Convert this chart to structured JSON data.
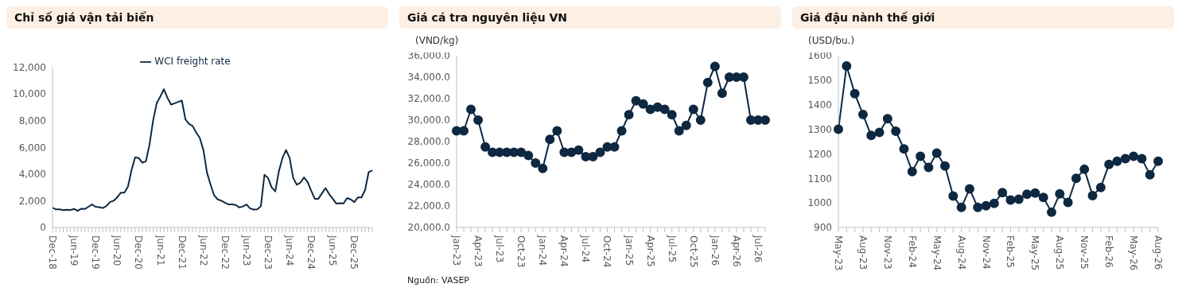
{
  "chart_data": [
    {
      "type": "line",
      "title": "Chỉ số giá vận tải biển",
      "legend": "top",
      "marker": "none",
      "categories": [
        "Dec-18",
        null,
        null,
        null,
        null,
        null,
        "Jun-19",
        null,
        null,
        null,
        null,
        null,
        "Dec-19",
        null,
        null,
        null,
        null,
        null,
        "Jun-20",
        null,
        null,
        null,
        null,
        null,
        "Dec-20",
        null,
        null,
        null,
        null,
        null,
        "Jun-21",
        null,
        null,
        null,
        null,
        null,
        "Dec-21",
        null,
        null,
        null,
        null,
        null,
        "Jun-22",
        null,
        null,
        null,
        null,
        null,
        "Dec-22",
        null,
        null,
        null,
        null,
        null,
        "Jun-23",
        null,
        null,
        null,
        null,
        null,
        "Dec-23",
        null,
        null,
        null,
        null,
        null,
        "Jun-24",
        null,
        null,
        null,
        null,
        null,
        "Dec-24",
        null,
        null,
        null,
        null,
        null,
        "Jun-25",
        null,
        null,
        null,
        null,
        null,
        "Dec-25",
        null,
        null,
        null,
        null,
        null
      ],
      "ylim": [
        0,
        12000
      ],
      "yticks": [
        0,
        {
          "value": 2000,
          "label": "2,000"
        },
        {
          "value": 4000,
          "label": "4,000"
        },
        {
          "value": 6000,
          "label": "6,000"
        },
        {
          "value": 8000,
          "label": "8,000"
        },
        {
          "value": 10000,
          "label": "10,000"
        },
        {
          "value": 12000,
          "label": "12,000"
        }
      ],
      "series": [
        {
          "name": "WCI freight rate",
          "color": "#0e2841",
          "values": [
            1480,
            1350,
            1350,
            1300,
            1330,
            1310,
            1380,
            1250,
            1400,
            1380,
            1550,
            1720,
            1550,
            1520,
            1450,
            1600,
            1900,
            2000,
            2250,
            2600,
            2600,
            3050,
            4300,
            5250,
            5200,
            4850,
            4950,
            6200,
            8000,
            9300,
            9800,
            10350,
            9700,
            9200,
            9300,
            9400,
            9500,
            8100,
            7750,
            7600,
            7100,
            6700,
            5800,
            4100,
            3200,
            2400,
            2100,
            2000,
            1850,
            1720,
            1730,
            1680,
            1500,
            1570,
            1720,
            1420,
            1340,
            1360,
            1600,
            3950,
            3700,
            3000,
            2700,
            4200,
            5200,
            5800,
            5200,
            3700,
            3200,
            3350,
            3750,
            3400,
            2750,
            2150,
            2150,
            2550,
            2950,
            2500,
            2150,
            1780,
            1820,
            1800,
            2200,
            2100,
            1900,
            2250,
            2250,
            2800,
            4150,
            4270
          ]
        }
      ]
    },
    {
      "type": "line",
      "title": "Giá cá tra nguyên liệu VN",
      "ylabel": "(VND/kg)",
      "legend": false,
      "marker": "circle",
      "categories": [
        "Jan-23",
        null,
        null,
        "Apr-23",
        null,
        null,
        "Jul-23",
        null,
        null,
        "Oct-23",
        null,
        null,
        "Jan-24",
        null,
        null,
        "Apr-24",
        null,
        null,
        "Jul-24",
        null,
        null,
        "Oct-24",
        null,
        null,
        "Jan-25",
        null,
        null,
        "Apr-25",
        null,
        null,
        "Jul-25",
        null,
        null,
        "Oct-25",
        null,
        null,
        "Jan-26",
        null,
        null,
        "Apr-26",
        null,
        null,
        "Jul-26",
        null
      ],
      "ylim": [
        20000,
        36000
      ],
      "yticks": [
        {
          "value": 20000,
          "label": "20,000.0"
        },
        {
          "value": 22000,
          "label": "22,000.0"
        },
        {
          "value": 24000,
          "label": "24,000.0"
        },
        {
          "value": 26000,
          "label": "26,000.0"
        },
        {
          "value": 28000,
          "label": "28,000.0"
        },
        {
          "value": 30000,
          "label": "30,000.0"
        },
        {
          "value": 32000,
          "label": "32,000.0"
        },
        {
          "value": 34000,
          "label": "34,000.0"
        },
        {
          "value": 36000,
          "label": "36,000.0"
        }
      ],
      "annotations": [
        "Nguồn: VASEP"
      ],
      "series": [
        {
          "color": "#0e2841",
          "values": [
            29000,
            29000,
            31000,
            30000,
            27500,
            27000,
            27000,
            27000,
            27000,
            27000,
            26700,
            26000,
            25500,
            28200,
            29000,
            27000,
            27000,
            27200,
            26600,
            26600,
            27000,
            27500,
            27500,
            29000,
            30500,
            31800,
            31500,
            31000,
            31200,
            31000,
            30500,
            29000,
            29500,
            31000,
            30000,
            33500,
            35000,
            32500,
            34000,
            34000,
            34000,
            30000,
            30000,
            30000
          ]
        }
      ]
    },
    {
      "type": "line",
      "title": "Giá đậu nành thế giới",
      "ylabel": "(USD/bu.)",
      "legend": false,
      "marker": "circle",
      "categories": [
        "May-23",
        null,
        null,
        "Aug-23",
        null,
        null,
        "Nov-23",
        null,
        null,
        "Feb-24",
        null,
        null,
        "May-24",
        null,
        null,
        "Aug-24",
        null,
        null,
        "Nov-24",
        null,
        null,
        "Feb-25",
        null,
        null,
        "May-25",
        null,
        null,
        "Aug-25",
        null,
        null,
        "Nov-25",
        null,
        null,
        "Feb-26",
        null,
        null,
        "May-26",
        null,
        null,
        "Aug-26"
      ],
      "ylim": [
        900,
        1600
      ],
      "yticks": [
        900,
        1000,
        1100,
        1200,
        1300,
        1400,
        1500,
        1600
      ],
      "series": [
        {
          "color": "#0e2841",
          "values": [
            1300,
            1558,
            1445,
            1360,
            1275,
            1287,
            1343,
            1292,
            1220,
            1128,
            1190,
            1145,
            1203,
            1150,
            1028,
            982,
            1057,
            982,
            988,
            998,
            1042,
            1012,
            1015,
            1035,
            1040,
            1022,
            962,
            1037,
            1002,
            1100,
            1137,
            1030,
            1063,
            1157,
            1170,
            1180,
            1190,
            1180,
            1115,
            1170
          ]
        }
      ]
    }
  ]
}
